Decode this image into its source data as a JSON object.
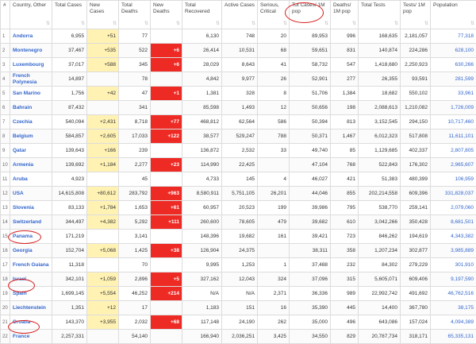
{
  "table": {
    "headers": [
      "#",
      "Country, Other",
      "Total Cases",
      "New Cases",
      "Total Deaths",
      "New Deaths",
      "Total Recovered",
      "Active Cases",
      "Serious, Critical",
      "Tot Cases/ 1M pop",
      "Deaths/ 1M pop",
      "Total Tests",
      "Tests/ 1M pop",
      "Population"
    ],
    "sort_icon": "sort-arrows-icon",
    "rows": [
      [
        "1",
        "Andorra",
        "6,955",
        "+51",
        "77",
        "",
        "6,130",
        "748",
        "20",
        "89,953",
        "996",
        "168,635",
        "2,181,057",
        "77,318"
      ],
      [
        "2",
        "Montenegro",
        "37,467",
        "+535",
        "522",
        "+6",
        "26,414",
        "10,531",
        "68",
        "59,651",
        "831",
        "140,874",
        "224,286",
        "628,100"
      ],
      [
        "3",
        "Luxembourg",
        "37,017",
        "+588",
        "345",
        "+6",
        "28,029",
        "8,643",
        "41",
        "58,732",
        "547",
        "1,418,680",
        "2,250,923",
        "630,266"
      ],
      [
        "4",
        "French Polynesia",
        "14,897",
        "",
        "78",
        "",
        "4,842",
        "9,977",
        "26",
        "52,901",
        "277",
        "26,355",
        "93,591",
        "281,599"
      ],
      [
        "5",
        "San Marino",
        "1,756",
        "+42",
        "47",
        "+1",
        "1,381",
        "328",
        "8",
        "51,706",
        "1,384",
        "18,682",
        "550,102",
        "33,961"
      ],
      [
        "6",
        "Bahrain",
        "87,432",
        "",
        "341",
        "",
        "85,598",
        "1,493",
        "12",
        "50,656",
        "198",
        "2,088,613",
        "1,210,082",
        "1,726,009"
      ],
      [
        "7",
        "Czechia",
        "540,094",
        "+2,431",
        "8,718",
        "+77",
        "468,812",
        "62,564",
        "586",
        "50,394",
        "813",
        "3,152,545",
        "294,150",
        "10,717,460"
      ],
      [
        "8",
        "Belgium",
        "584,857",
        "+2,605",
        "17,033",
        "+122",
        "38,577",
        "529,247",
        "788",
        "50,371",
        "1,467",
        "6,012,323",
        "517,808",
        "11,611,101"
      ],
      [
        "9",
        "Qatar",
        "139,643",
        "+166",
        "239",
        "",
        "136,872",
        "2,532",
        "33",
        "49,740",
        "85",
        "1,129,685",
        "402,337",
        "2,807,805"
      ],
      [
        "10",
        "Armenia",
        "139,692",
        "+1,184",
        "2,277",
        "+23",
        "114,990",
        "22,425",
        "",
        "47,104",
        "768",
        "522,843",
        "176,302",
        "2,965,607"
      ],
      [
        "11",
        "Aruba",
        "4,923",
        "",
        "45",
        "",
        "4,733",
        "145",
        "4",
        "46,027",
        "421",
        "51,383",
        "480,399",
        "106,959"
      ],
      [
        "12",
        "USA",
        "14,615,808",
        "+80,612",
        "283,792",
        "+963",
        "8,580,911",
        "5,751,105",
        "26,201",
        "44,046",
        "855",
        "202,214,558",
        "609,396",
        "331,828,037"
      ],
      [
        "13",
        "Slovenia",
        "83,133",
        "+1,784",
        "1,653",
        "+61",
        "60,957",
        "20,523",
        "199",
        "39,986",
        "795",
        "538,770",
        "259,141",
        "2,079,060"
      ],
      [
        "14",
        "Switzerland",
        "344,497",
        "+4,382",
        "5,292",
        "+111",
        "260,600",
        "78,605",
        "479",
        "39,682",
        "610",
        "3,042,266",
        "350,428",
        "8,681,501"
      ],
      [
        "15",
        "Panama",
        "171,219",
        "",
        "3,141",
        "",
        "148,396",
        "19,682",
        "161",
        "39,421",
        "723",
        "846,262",
        "194,619",
        "4,343,382"
      ],
      [
        "16",
        "Georgia",
        "152,704",
        "+5,068",
        "1,425",
        "+38",
        "126,904",
        "24,375",
        "",
        "38,311",
        "358",
        "1,207,234",
        "302,877",
        "3,985,889"
      ],
      [
        "17",
        "French Guiana",
        "11,318",
        "",
        "70",
        "",
        "9,995",
        "1,253",
        "1",
        "37,488",
        "232",
        "84,302",
        "279,229",
        "301,910"
      ],
      [
        "18",
        "Israel",
        "342,101",
        "+1,059",
        "2,896",
        "+5",
        "327,162",
        "12,043",
        "324",
        "37,096",
        "315",
        "5,605,071",
        "609,406",
        "9,197,590"
      ],
      [
        "19",
        "Spain",
        "1,699,145",
        "+5,554",
        "46,252",
        "+214",
        "N/A",
        "N/A",
        "2,371",
        "36,336",
        "989",
        "22,992,742",
        "491,692",
        "46,762,516"
      ],
      [
        "20",
        "Liechtenstein",
        "1,351",
        "+12",
        "17",
        "",
        "1,183",
        "151",
        "16",
        "35,390",
        "445",
        "14,400",
        "367,780",
        "38,175"
      ],
      [
        "21",
        "Croatia",
        "143,370",
        "+3,955",
        "2,032",
        "+68",
        "117,148",
        "24,190",
        "262",
        "35,000",
        "496",
        "643,086",
        "157,024",
        "4,094,389"
      ],
      [
        "22",
        "France",
        "2,257,331",
        "",
        "54,140",
        "",
        "166,940",
        "2,036,251",
        "3,425",
        "34,550",
        "829",
        "20,787,734",
        "318,171",
        "65,335,131"
      ]
    ]
  },
  "annotation_color": "#d71f1f"
}
